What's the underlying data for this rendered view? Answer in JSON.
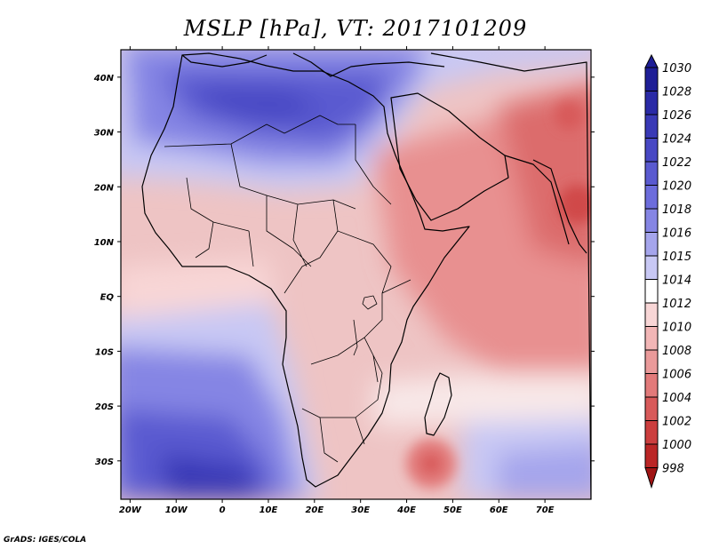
{
  "title": "MSLP [hPa], VT: 2017101209",
  "credit": "GrADS: IGES/COLA",
  "axes": {
    "lat_labels": [
      "40N",
      "30N",
      "20N",
      "10N",
      "EQ",
      "10S",
      "20S",
      "30S"
    ],
    "lat_values": [
      40,
      30,
      20,
      10,
      0,
      -10,
      -20,
      -30
    ],
    "lon_labels": [
      "20W",
      "10W",
      "0",
      "10E",
      "20E",
      "30E",
      "40E",
      "50E",
      "60E",
      "70E"
    ],
    "lon_values": [
      -20,
      -10,
      0,
      10,
      20,
      30,
      40,
      50,
      60,
      70
    ],
    "lat_range": [
      -37,
      45
    ],
    "lon_range": [
      -22,
      80
    ]
  },
  "colorbar": {
    "levels": [
      "1030",
      "1028",
      "1026",
      "1024",
      "1022",
      "1020",
      "1018",
      "1016",
      "1015",
      "1014",
      "1012",
      "1010",
      "1008",
      "1006",
      "1004",
      "1002",
      "1000",
      "998"
    ],
    "colors": [
      "#1e1e96",
      "#2a2aa6",
      "#3939b6",
      "#4848c4",
      "#5a5ad0",
      "#6c6cdc",
      "#8585e4",
      "#a5a5ec",
      "#c8c8f4",
      "#ffffff",
      "#f8d6d6",
      "#f2b6b6",
      "#ea9a9a",
      "#e27a7a",
      "#d85a5a",
      "#cc3e3e",
      "#bb2626",
      "#a01414"
    ]
  }
}
